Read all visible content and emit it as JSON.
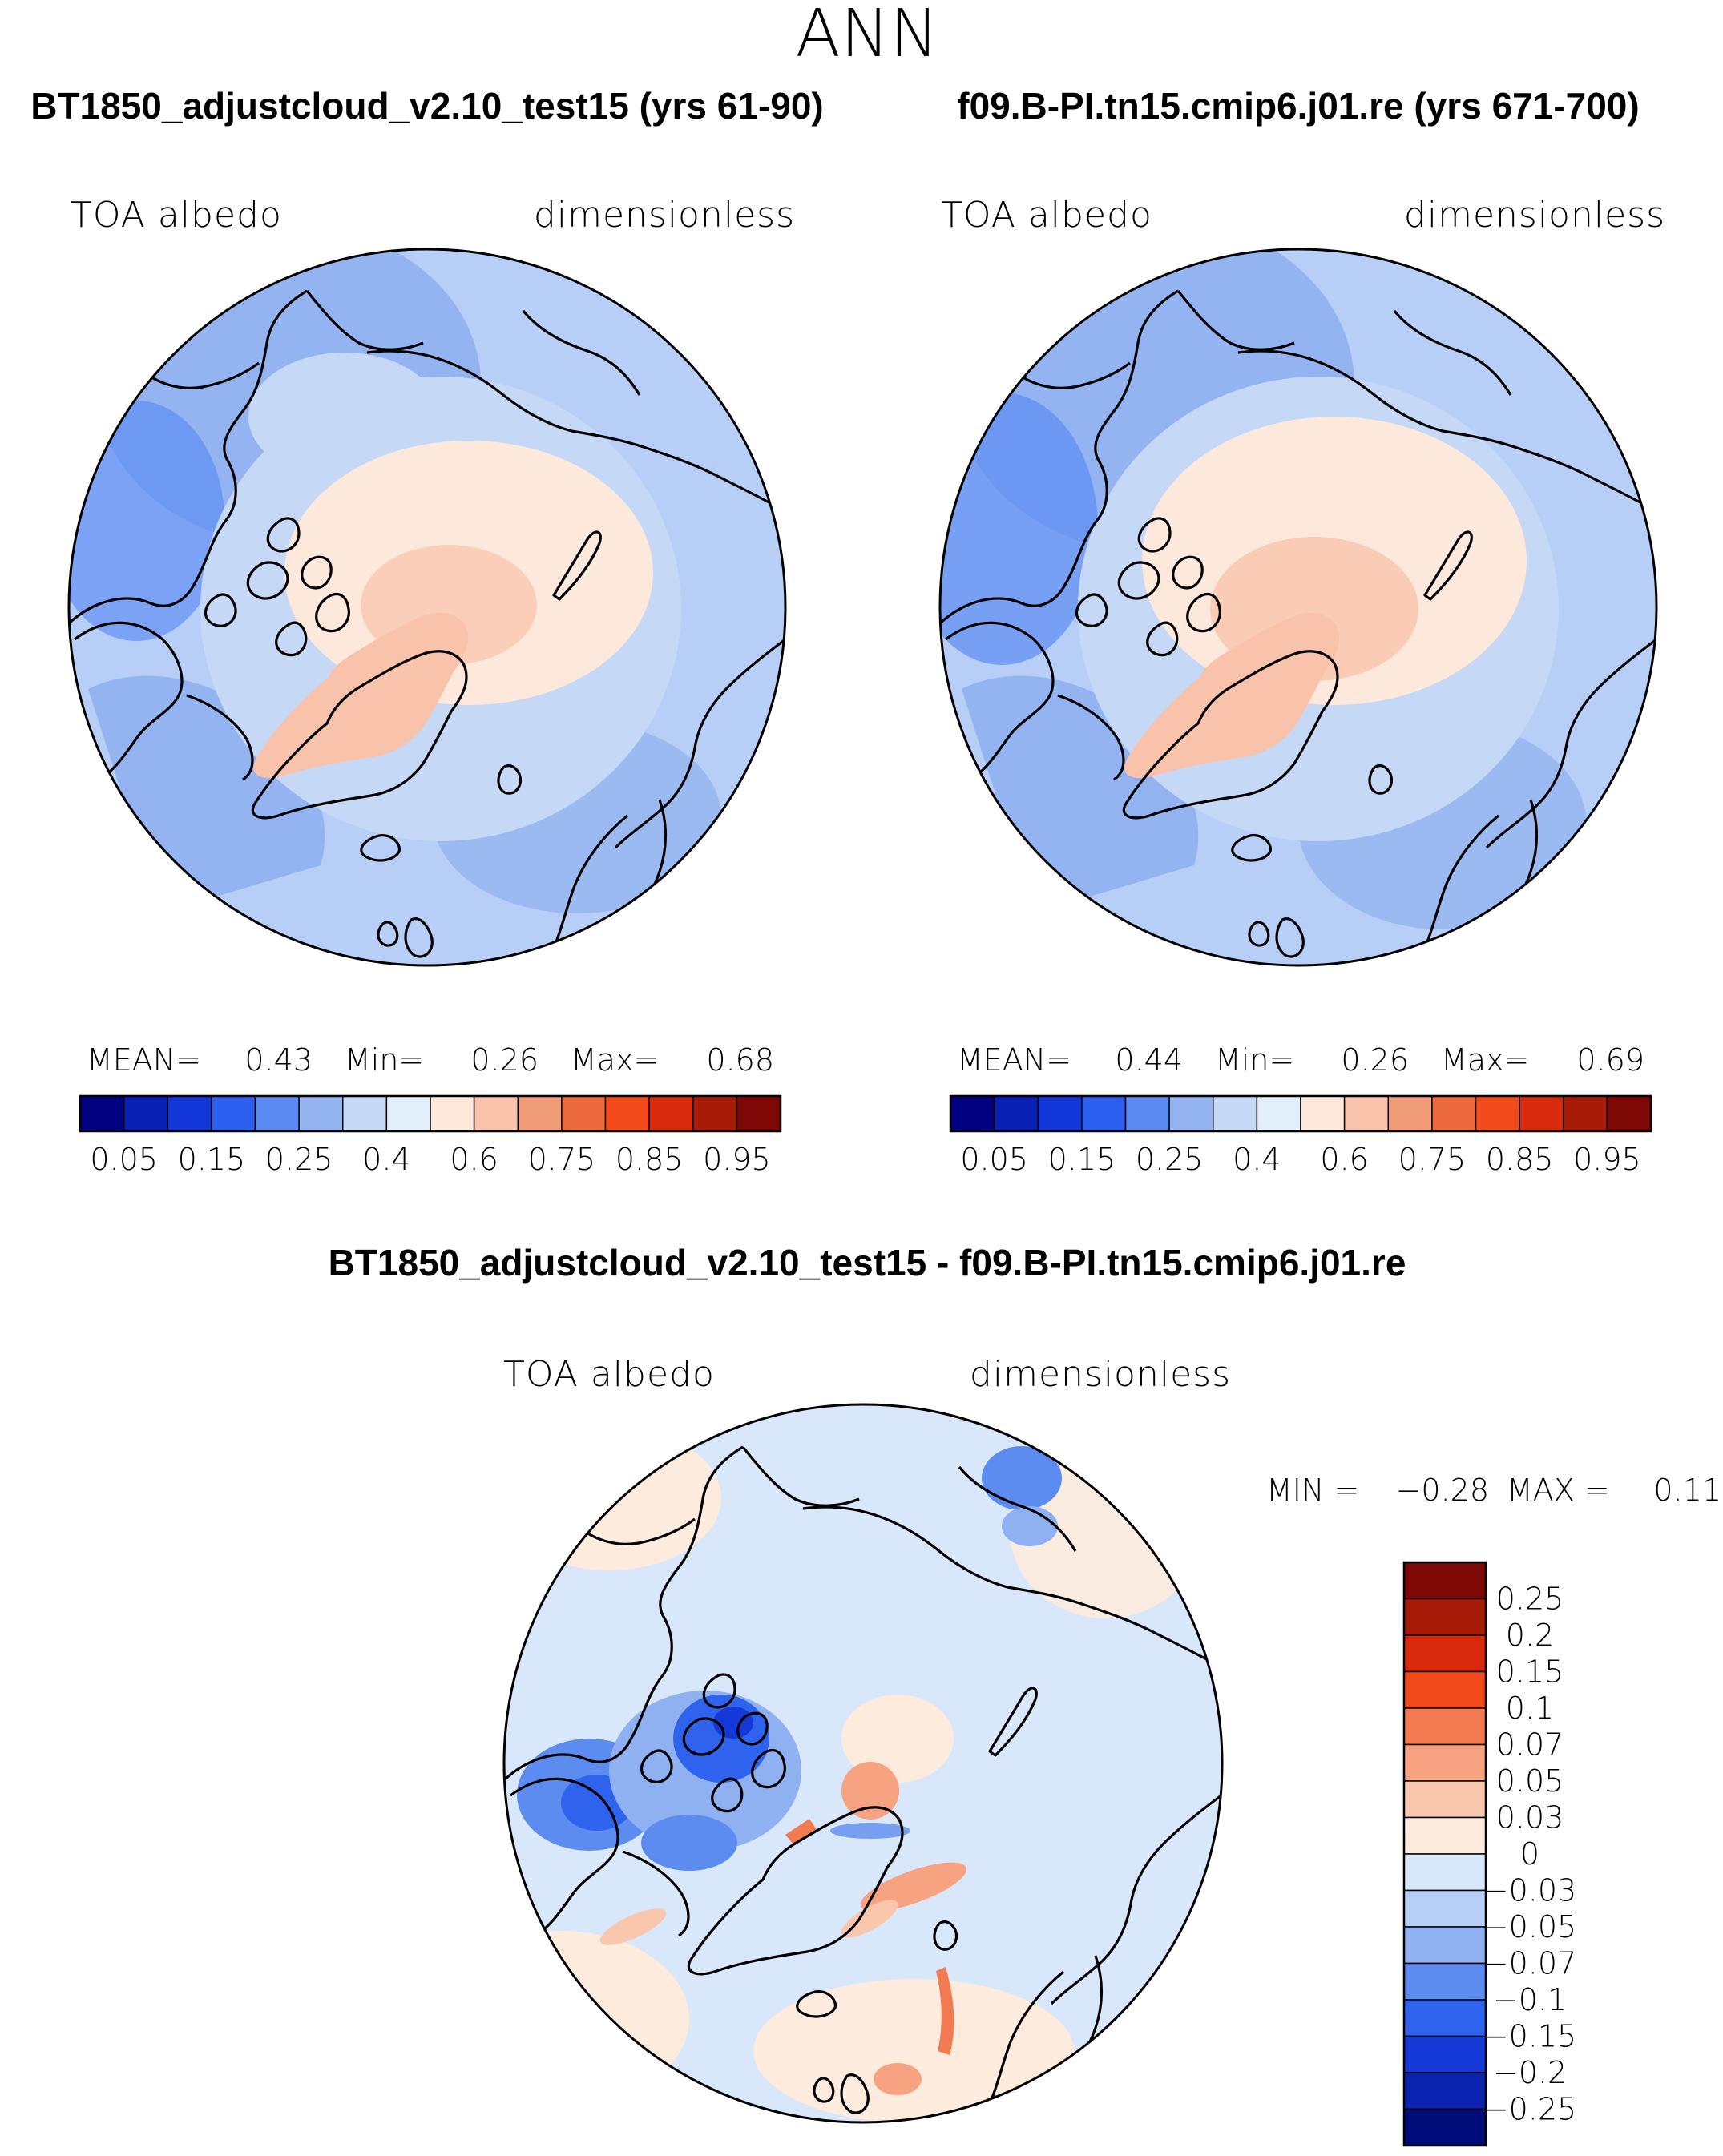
{
  "page": {
    "main_title": "ANN"
  },
  "chart_data": [
    {
      "type": "heatmap",
      "projection": "north-polar-stereographic",
      "title": "BT1850_adjustcloud_v2.10_test15 (yrs 61-90)",
      "variable": "TOA albedo",
      "units": "dimensionless",
      "stats": {
        "mean_label": "MEAN=",
        "mean": "0.43",
        "min_label": "Min=",
        "min": "0.26",
        "max_label": "Max=",
        "max": "0.68"
      },
      "colorbar": {
        "orientation": "horizontal",
        "tick_labels": [
          "0.05",
          "0.15",
          "0.25",
          "0.4",
          "0.6",
          "0.75",
          "0.85",
          "0.95"
        ],
        "colors": [
          "#000080",
          "#0a1fb4",
          "#1336d8",
          "#2c5ef0",
          "#5b8af2",
          "#93b4f0",
          "#c5d8f6",
          "#e3eefb",
          "#fde8dc",
          "#f8c3aa",
          "#f19c78",
          "#ec6a3e",
          "#f34a1c",
          "#d8290c",
          "#a81b08",
          "#7e0806"
        ]
      }
    },
    {
      "type": "heatmap",
      "projection": "north-polar-stereographic",
      "title": "f09.B-PI.tn15.cmip6.j01.re (yrs 671-700)",
      "variable": "TOA albedo",
      "units": "dimensionless",
      "stats": {
        "mean_label": "MEAN=",
        "mean": "0.44",
        "min_label": "Min=",
        "min": "0.26",
        "max_label": "Max=",
        "max": "0.69"
      },
      "colorbar": {
        "orientation": "horizontal",
        "tick_labels": [
          "0.05",
          "0.15",
          "0.25",
          "0.4",
          "0.6",
          "0.75",
          "0.85",
          "0.95"
        ],
        "colors": [
          "#000080",
          "#0a1fb4",
          "#1336d8",
          "#2c5ef0",
          "#5b8af2",
          "#93b4f0",
          "#c5d8f6",
          "#e3eefb",
          "#fde8dc",
          "#f8c3aa",
          "#f19c78",
          "#ec6a3e",
          "#f34a1c",
          "#d8290c",
          "#a81b08",
          "#7e0806"
        ]
      }
    },
    {
      "type": "heatmap",
      "projection": "north-polar-stereographic",
      "title": "BT1850_adjustcloud_v2.10_test15 - f09.B-PI.tn15.cmip6.j01.re",
      "variable": "TOA albedo",
      "units": "dimensionless",
      "stats": {
        "min_label": "MIN =",
        "min": "−0.28",
        "max_label": "MAX =",
        "max": "0.11"
      },
      "colorbar": {
        "orientation": "vertical",
        "tick_labels": [
          "0.25",
          "0.2",
          "0.15",
          "0.1",
          "0.07",
          "0.05",
          "0.03",
          "0",
          "−0.03",
          "−0.05",
          "−0.07",
          "−0.1",
          "−0.15",
          "−0.2",
          "−0.25"
        ],
        "colors": [
          "#7e0806",
          "#a81b08",
          "#d8290c",
          "#f34a1c",
          "#f37b52",
          "#f7a382",
          "#f9c7ae",
          "#fdebde",
          "#d9e7fa",
          "#b7cff6",
          "#8fb1f2",
          "#5c8cef",
          "#2f63ee",
          "#1539d6",
          "#0a22b0",
          "#000e7c"
        ]
      }
    }
  ]
}
